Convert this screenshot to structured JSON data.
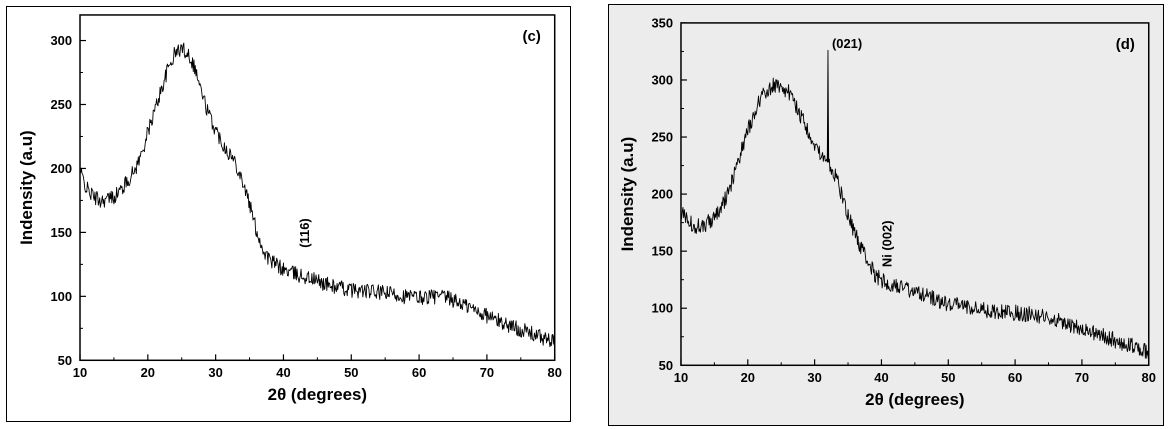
{
  "chart_data": [
    {
      "type": "line",
      "panel_label": "(c)",
      "xlabel": "2θ (degrees)",
      "ylabel": "Indensity (a.u)",
      "xlim": [
        10,
        80
      ],
      "ylim": [
        50,
        320
      ],
      "xticks": [
        10,
        20,
        30,
        40,
        50,
        60,
        70,
        80
      ],
      "yticks": [
        50,
        100,
        150,
        200,
        250,
        300
      ],
      "background": "#ffffff",
      "line_color": "#000000",
      "noise_amplitude": 6,
      "series": [
        {
          "x": [
            10,
            11,
            12,
            13,
            14,
            15,
            16,
            17,
            18,
            19,
            20,
            21,
            22,
            23,
            24,
            25,
            26,
            27,
            28,
            29,
            30,
            31,
            32,
            33,
            34,
            35,
            36,
            37,
            38,
            40,
            42,
            44,
            46,
            48,
            50,
            52,
            54,
            56,
            58,
            60,
            62,
            64,
            66,
            68,
            70,
            72,
            74,
            76,
            78,
            80
          ],
          "values": [
            198,
            184,
            178,
            175,
            176,
            178,
            183,
            190,
            198,
            210,
            228,
            245,
            262,
            278,
            290,
            294,
            290,
            278,
            258,
            242,
            230,
            220,
            212,
            204,
            190,
            172,
            152,
            136,
            128,
            121,
            117,
            114,
            110,
            107,
            105,
            104,
            103,
            102,
            100,
            99,
            100,
            99,
            95,
            90,
            85,
            80,
            76,
            72,
            68,
            64
          ]
        }
      ],
      "annotations": [
        {
          "text": "(116)",
          "x": 43.8,
          "y": 138,
          "rotate": -90
        }
      ]
    },
    {
      "type": "line",
      "panel_label": "(d)",
      "xlabel": "2θ (degrees)",
      "ylabel": "Indensity (a.u)",
      "xlim": [
        10,
        80
      ],
      "ylim": [
        50,
        350
      ],
      "xticks": [
        10,
        20,
        30,
        40,
        50,
        60,
        70,
        80
      ],
      "yticks": [
        50,
        100,
        150,
        200,
        250,
        300,
        350
      ],
      "background": "#ececec",
      "line_color": "#000000",
      "noise_amplitude": 7,
      "series": [
        {
          "x": [
            10,
            11,
            12,
            13,
            14,
            15,
            16,
            17,
            18,
            19,
            20,
            21,
            22,
            23,
            24,
            25,
            26,
            27,
            28,
            29,
            30,
            31,
            31.9,
            32,
            32.1,
            33,
            34,
            35,
            36,
            37,
            38,
            39,
            40,
            42,
            44,
            46,
            48,
            50,
            52,
            54,
            56,
            58,
            60,
            62,
            64,
            66,
            68,
            70,
            72,
            74,
            76,
            78,
            80
          ],
          "values": [
            183,
            178,
            172,
            172,
            175,
            180,
            188,
            200,
            218,
            238,
            256,
            272,
            284,
            292,
            296,
            294,
            290,
            280,
            268,
            256,
            244,
            234,
            228,
            326,
            228,
            218,
            200,
            182,
            166,
            152,
            140,
            130,
            124,
            120,
            116,
            112,
            108,
            104,
            102,
            100,
            98,
            97,
            96,
            95,
            93,
            90,
            86,
            82,
            78,
            74,
            70,
            66,
            62
          ]
        }
      ],
      "annotations": [
        {
          "text": "(021)",
          "x": 32.6,
          "y": 328,
          "rotate": 0
        },
        {
          "text": "Ni (002)",
          "x": 41.5,
          "y": 136,
          "rotate": -90
        }
      ]
    }
  ]
}
